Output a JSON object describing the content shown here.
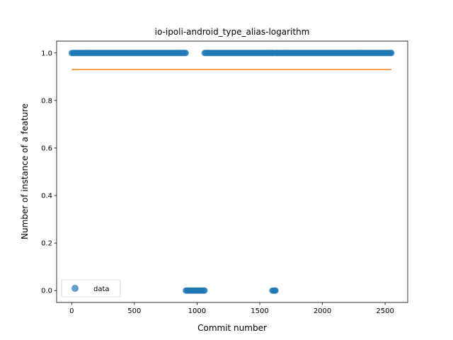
{
  "chart_data": {
    "type": "scatter",
    "title": "io-ipoli-android_type_alias-logarithm",
    "xlabel": "Commit number",
    "ylabel": "Number of instance of a feature",
    "xlim": [
      -120,
      2680
    ],
    "ylim": [
      -0.05,
      1.05
    ],
    "xticks": [
      0,
      500,
      1000,
      1500,
      2000,
      2500
    ],
    "yticks": [
      0.0,
      0.2,
      0.4,
      0.6,
      0.8,
      1.0
    ],
    "xtick_labels": [
      "0",
      "500",
      "1000",
      "1500",
      "2000",
      "2500"
    ],
    "ytick_labels": [
      "0.0",
      "0.2",
      "0.4",
      "0.6",
      "0.8",
      "1.0"
    ],
    "legend": {
      "position": "lower-left",
      "entries": [
        "data"
      ]
    },
    "grid": false,
    "colors": {
      "data": "#1f77b4",
      "fit": "#ff7f0e"
    },
    "series": [
      {
        "name": "data",
        "kind": "scatter",
        "segments": [
          {
            "x_start": 0,
            "x_end": 910,
            "y": 1.0
          },
          {
            "x_start": 910,
            "x_end": 1060,
            "y": 0.0
          },
          {
            "x_start": 1060,
            "x_end": 1610,
            "y": 1.0
          },
          {
            "x_start": 1600,
            "x_end": 1625,
            "y": 0.0
          },
          {
            "x_start": 1625,
            "x_end": 2550,
            "y": 1.0
          }
        ]
      },
      {
        "kind": "line",
        "x": [
          0,
          2550
        ],
        "y": [
          0.93,
          0.93
        ]
      }
    ]
  }
}
